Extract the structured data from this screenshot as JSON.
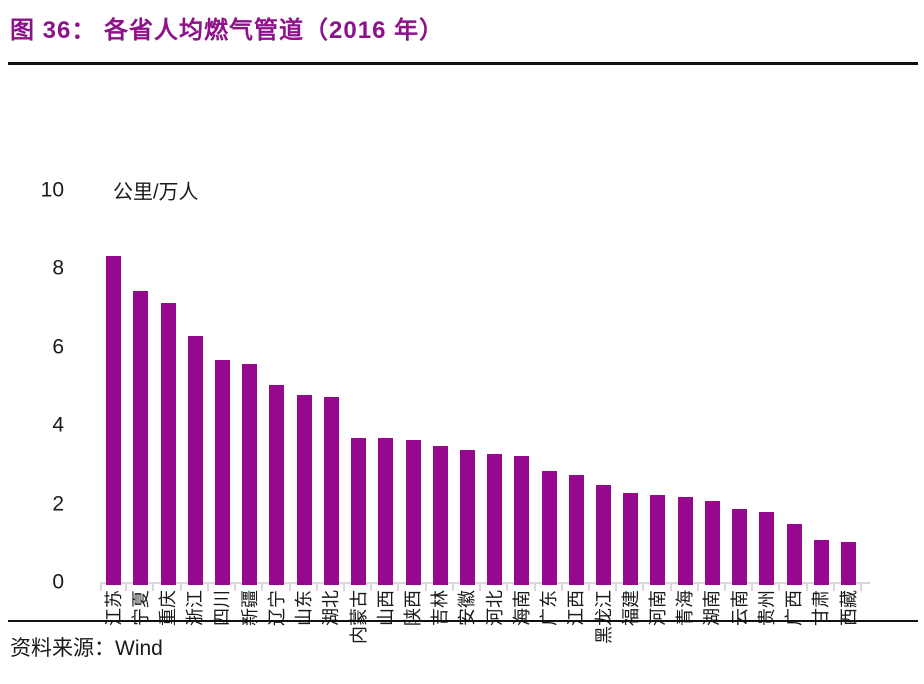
{
  "header": {
    "title": "图 36：  各省人均燃气管道（2016 年）"
  },
  "chart_data": {
    "type": "bar",
    "title": "各省人均燃气管道（2016 年）",
    "unit_label": "公里/万人",
    "categories": [
      "江苏",
      "宁夏",
      "重庆",
      "浙江",
      "四川",
      "新疆",
      "辽宁",
      "山东",
      "湖北",
      "内蒙古",
      "山西",
      "陕西",
      "吉林",
      "安徽",
      "河北",
      "海南",
      "广东",
      "江西",
      "黑龙江",
      "福建",
      "河南",
      "青海",
      "湖南",
      "云南",
      "贵州",
      "广西",
      "甘肃",
      "西藏"
    ],
    "values": [
      8.4,
      7.5,
      7.2,
      6.35,
      5.75,
      5.65,
      5.1,
      4.85,
      4.8,
      3.75,
      3.75,
      3.7,
      3.55,
      3.45,
      3.35,
      3.3,
      2.9,
      2.8,
      2.55,
      2.35,
      2.3,
      2.25,
      2.15,
      1.95,
      1.85,
      1.55,
      1.15,
      1.1
    ],
    "ylim": [
      0,
      10
    ],
    "yticks": [
      0,
      2,
      4,
      6,
      8,
      10
    ],
    "grid": false,
    "legend": "none",
    "bar_color": "#96098F",
    "axis_color": "#D9D9D9",
    "title_color": "#8C118A"
  },
  "footer": {
    "source_label": "资料来源：",
    "source_value": "Wind"
  }
}
